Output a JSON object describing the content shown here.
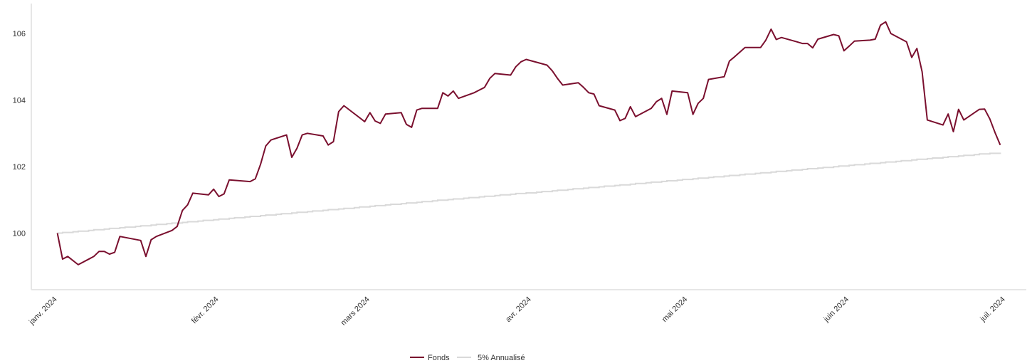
{
  "colors": {
    "fonds": "#7a0f2e",
    "benchmark": "#d9d9d9",
    "axis": "#e6e6e6",
    "text": "#333333"
  },
  "chart_data": {
    "type": "line",
    "title": "",
    "xlabel": "",
    "ylabel": "",
    "x_range": [
      "2023-12-27",
      "2024-07-05"
    ],
    "ylim": [
      98.3,
      106.9
    ],
    "y_ticks": [
      100,
      102,
      104,
      106
    ],
    "y_tick_labels": [
      "100",
      "102",
      "104",
      "106"
    ],
    "x_ticks": [
      {
        "date": "2024-01-01",
        "label": "janv. 2024"
      },
      {
        "date": "2024-02-01",
        "label": "févr. 2024"
      },
      {
        "date": "2024-03-01",
        "label": "mars 2024"
      },
      {
        "date": "2024-04-01",
        "label": "avr. 2024"
      },
      {
        "date": "2024-05-01",
        "label": "mai 2024"
      },
      {
        "date": "2024-06-01",
        "label": "juin 2024"
      },
      {
        "date": "2024-07-01",
        "label": "juil. 2024"
      }
    ],
    "legend_position": "bottom-center",
    "grid": false,
    "series": [
      {
        "name": "Fonds",
        "color": "#7a0f2e",
        "points": [
          [
            "2024-01-01",
            100.0
          ],
          [
            "2024-01-02",
            99.22
          ],
          [
            "2024-01-03",
            99.3
          ],
          [
            "2024-01-05",
            99.05
          ],
          [
            "2024-01-08",
            99.3
          ],
          [
            "2024-01-09",
            99.45
          ],
          [
            "2024-01-10",
            99.45
          ],
          [
            "2024-01-11",
            99.37
          ],
          [
            "2024-01-12",
            99.42
          ],
          [
            "2024-01-13",
            99.9
          ],
          [
            "2024-01-17",
            99.78
          ],
          [
            "2024-01-18",
            99.3
          ],
          [
            "2024-01-19",
            99.8
          ],
          [
            "2024-01-20",
            99.9
          ],
          [
            "2024-01-23",
            100.08
          ],
          [
            "2024-01-24",
            100.2
          ],
          [
            "2024-01-25",
            100.68
          ],
          [
            "2024-01-26",
            100.85
          ],
          [
            "2024-01-27",
            101.2
          ],
          [
            "2024-01-30",
            101.15
          ],
          [
            "2024-01-31",
            101.32
          ],
          [
            "2024-02-01",
            101.1
          ],
          [
            "2024-02-02",
            101.18
          ],
          [
            "2024-02-03",
            101.6
          ],
          [
            "2024-02-07",
            101.55
          ],
          [
            "2024-02-08",
            101.63
          ],
          [
            "2024-02-09",
            102.07
          ],
          [
            "2024-02-10",
            102.62
          ],
          [
            "2024-02-11",
            102.8
          ],
          [
            "2024-02-14",
            102.95
          ],
          [
            "2024-02-15",
            102.28
          ],
          [
            "2024-02-16",
            102.55
          ],
          [
            "2024-02-17",
            102.95
          ],
          [
            "2024-02-18",
            103.0
          ],
          [
            "2024-02-21",
            102.92
          ],
          [
            "2024-02-22",
            102.65
          ],
          [
            "2024-02-23",
            102.75
          ],
          [
            "2024-02-24",
            103.65
          ],
          [
            "2024-02-25",
            103.83
          ],
          [
            "2024-02-29",
            103.35
          ],
          [
            "2024-03-01",
            103.62
          ],
          [
            "2024-03-02",
            103.37
          ],
          [
            "2024-03-03",
            103.3
          ],
          [
            "2024-03-04",
            103.58
          ],
          [
            "2024-03-07",
            103.62
          ],
          [
            "2024-03-08",
            103.27
          ],
          [
            "2024-03-09",
            103.18
          ],
          [
            "2024-03-10",
            103.7
          ],
          [
            "2024-03-11",
            103.75
          ],
          [
            "2024-03-14",
            103.75
          ],
          [
            "2024-03-15",
            104.22
          ],
          [
            "2024-03-16",
            104.12
          ],
          [
            "2024-03-17",
            104.27
          ],
          [
            "2024-03-18",
            104.05
          ],
          [
            "2024-03-21",
            104.22
          ],
          [
            "2024-03-22",
            104.3
          ],
          [
            "2024-03-23",
            104.38
          ],
          [
            "2024-03-24",
            104.65
          ],
          [
            "2024-03-25",
            104.8
          ],
          [
            "2024-03-28",
            104.75
          ],
          [
            "2024-03-29",
            105.0
          ],
          [
            "2024-03-30",
            105.15
          ],
          [
            "2024-03-31",
            105.22
          ],
          [
            "2024-04-04",
            105.05
          ],
          [
            "2024-04-05",
            104.88
          ],
          [
            "2024-04-06",
            104.65
          ],
          [
            "2024-04-07",
            104.45
          ],
          [
            "2024-04-10",
            104.52
          ],
          [
            "2024-04-11",
            104.38
          ],
          [
            "2024-04-12",
            104.22
          ],
          [
            "2024-04-13",
            104.18
          ],
          [
            "2024-04-14",
            103.83
          ],
          [
            "2024-04-17",
            103.7
          ],
          [
            "2024-04-18",
            103.38
          ],
          [
            "2024-04-19",
            103.45
          ],
          [
            "2024-04-20",
            103.8
          ],
          [
            "2024-04-21",
            103.5
          ],
          [
            "2024-04-24",
            103.75
          ],
          [
            "2024-04-25",
            103.95
          ],
          [
            "2024-04-26",
            104.05
          ],
          [
            "2024-04-27",
            103.57
          ],
          [
            "2024-04-28",
            104.27
          ],
          [
            "2024-05-01",
            104.22
          ],
          [
            "2024-05-02",
            103.57
          ],
          [
            "2024-05-03",
            103.9
          ],
          [
            "2024-05-04",
            104.05
          ],
          [
            "2024-05-05",
            104.62
          ],
          [
            "2024-05-08",
            104.7
          ],
          [
            "2024-05-09",
            105.17
          ],
          [
            "2024-05-10",
            105.3
          ],
          [
            "2024-05-12",
            105.58
          ],
          [
            "2024-05-15",
            105.58
          ],
          [
            "2024-05-16",
            105.8
          ],
          [
            "2024-05-17",
            106.13
          ],
          [
            "2024-05-18",
            105.82
          ],
          [
            "2024-05-19",
            105.88
          ],
          [
            "2024-05-22",
            105.75
          ],
          [
            "2024-05-23",
            105.7
          ],
          [
            "2024-05-24",
            105.7
          ],
          [
            "2024-05-25",
            105.57
          ],
          [
            "2024-05-26",
            105.83
          ],
          [
            "2024-05-29",
            105.97
          ],
          [
            "2024-05-30",
            105.93
          ],
          [
            "2024-05-31",
            105.48
          ],
          [
            "2024-06-01",
            105.62
          ],
          [
            "2024-06-02",
            105.77
          ],
          [
            "2024-06-05",
            105.8
          ],
          [
            "2024-06-06",
            105.83
          ],
          [
            "2024-06-07",
            106.25
          ],
          [
            "2024-06-08",
            106.35
          ],
          [
            "2024-06-09",
            106.0
          ],
          [
            "2024-06-12",
            105.75
          ],
          [
            "2024-06-13",
            105.28
          ],
          [
            "2024-06-14",
            105.55
          ],
          [
            "2024-06-15",
            104.85
          ],
          [
            "2024-06-16",
            103.4
          ],
          [
            "2024-06-19",
            103.25
          ],
          [
            "2024-06-20",
            103.58
          ],
          [
            "2024-06-21",
            103.05
          ],
          [
            "2024-06-22",
            103.72
          ],
          [
            "2024-06-23",
            103.4
          ],
          [
            "2024-06-26",
            103.72
          ],
          [
            "2024-06-27",
            103.73
          ],
          [
            "2024-06-28",
            103.43
          ],
          [
            "2024-06-29",
            103.02
          ],
          [
            "2024-06-30",
            102.65
          ]
        ]
      },
      {
        "name": "5% Annualisé",
        "color": "#d9d9d9",
        "start": [
          "2024-01-01",
          100.0
        ],
        "end": [
          "2024-06-30",
          102.42
        ]
      }
    ]
  }
}
